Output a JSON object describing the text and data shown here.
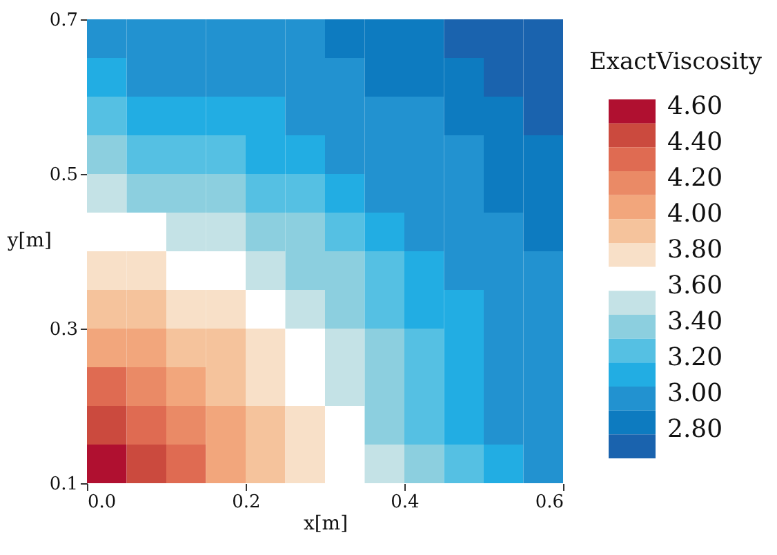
{
  "chart_data": {
    "type": "heatmap",
    "xlabel": "x[m]",
    "ylabel": "y[m]",
    "legend_title": "ExactViscosity",
    "x": [
      0.025,
      0.075,
      0.125,
      0.175,
      0.225,
      0.275,
      0.325,
      0.375,
      0.425,
      0.475,
      0.525,
      0.575
    ],
    "y": [
      0.675,
      0.625,
      0.575,
      0.525,
      0.475,
      0.425,
      0.375,
      0.325,
      0.275,
      0.225,
      0.175,
      0.125
    ],
    "cells": [
      [
        2.97,
        2.97,
        2.97,
        2.97,
        2.97,
        2.97,
        2.84,
        2.84,
        2.84,
        2.71,
        2.71,
        2.71
      ],
      [
        3.11,
        2.97,
        2.97,
        2.97,
        2.97,
        2.97,
        2.97,
        2.84,
        2.84,
        2.84,
        2.71,
        2.71
      ],
      [
        3.24,
        3.11,
        3.11,
        3.11,
        3.11,
        2.97,
        2.97,
        2.97,
        2.97,
        2.84,
        2.84,
        2.71
      ],
      [
        3.37,
        3.24,
        3.24,
        3.24,
        3.11,
        3.11,
        2.97,
        2.97,
        2.97,
        2.97,
        2.84,
        2.84
      ],
      [
        3.51,
        3.37,
        3.37,
        3.37,
        3.24,
        3.24,
        3.11,
        2.97,
        2.97,
        2.97,
        2.84,
        2.84
      ],
      [
        3.64,
        3.64,
        3.51,
        3.51,
        3.37,
        3.37,
        3.24,
        3.11,
        2.97,
        2.97,
        2.97,
        2.84
      ],
      [
        3.77,
        3.77,
        3.64,
        3.64,
        3.51,
        3.37,
        3.37,
        3.24,
        3.11,
        2.97,
        2.97,
        2.97
      ],
      [
        3.91,
        3.91,
        3.77,
        3.77,
        3.64,
        3.51,
        3.37,
        3.24,
        3.11,
        3.11,
        2.97,
        2.97
      ],
      [
        4.04,
        4.04,
        3.91,
        3.91,
        3.77,
        3.64,
        3.51,
        3.37,
        3.24,
        3.11,
        2.97,
        2.97
      ],
      [
        4.31,
        4.17,
        4.04,
        3.91,
        3.77,
        3.64,
        3.51,
        3.37,
        3.24,
        3.11,
        2.97,
        2.97
      ],
      [
        4.44,
        4.31,
        4.17,
        4.04,
        3.91,
        3.77,
        3.64,
        3.37,
        3.24,
        3.11,
        2.97,
        2.97
      ],
      [
        4.57,
        4.44,
        4.31,
        4.04,
        3.91,
        3.77,
        3.64,
        3.51,
        3.37,
        3.24,
        3.11,
        2.97
      ]
    ],
    "colors": [
      "#b01030",
      "#cb4a3e",
      "#df6b52",
      "#ea8a66",
      "#f2a67c",
      "#f5c39c",
      "#f8e0c8",
      "#ffffff",
      "#c4e2e6",
      "#8ccfdf",
      "#55c0e3",
      "#22ade3",
      "#2292d0",
      "#0d7bc0",
      "#1a63ae"
    ],
    "clim": [
      2.64,
      4.64
    ],
    "cticks": [
      {
        "value": 4.6,
        "label": "4.60"
      },
      {
        "value": 4.4,
        "label": "4.40"
      },
      {
        "value": 4.2,
        "label": "4.20"
      },
      {
        "value": 4.0,
        "label": "4.00"
      },
      {
        "value": 3.8,
        "label": "3.80"
      },
      {
        "value": 3.6,
        "label": "3.60"
      },
      {
        "value": 3.4,
        "label": "3.40"
      },
      {
        "value": 3.2,
        "label": "3.20"
      },
      {
        "value": 3.0,
        "label": "3.00"
      },
      {
        "value": 2.8,
        "label": "2.80"
      }
    ],
    "xlim": [
      0,
      0.6
    ],
    "xticks": [
      {
        "value": 0,
        "label": "0.0"
      },
      0.2,
      0.4,
      0.6
    ],
    "ylim": [
      0.1,
      0.7
    ],
    "yticks": [
      0.1,
      0.3,
      0.5,
      0.7
    ],
    "grid": false
  }
}
